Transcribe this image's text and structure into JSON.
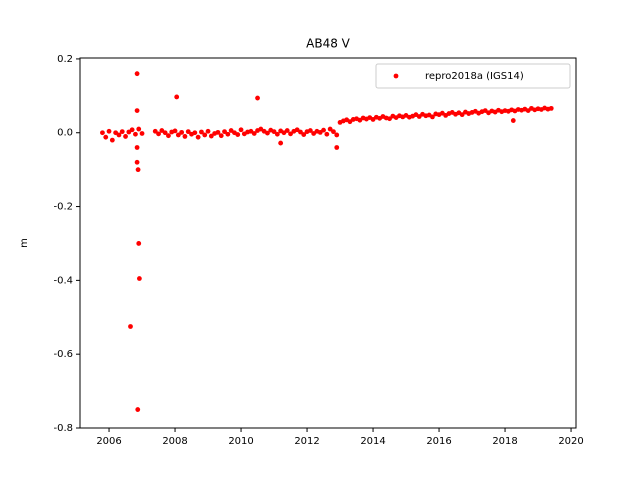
{
  "chart_data": {
    "type": "scatter",
    "title": "AB48 V",
    "y_label": "m",
    "xlim": [
      2005.12,
      2020.15
    ],
    "xticks": [
      2006,
      2008,
      2010,
      2012,
      2014,
      2016,
      2018,
      2020
    ],
    "ylim": [
      -0.8,
      0.2025
    ],
    "yticks": [
      -0.8,
      -0.6,
      -0.4,
      -0.2,
      {
        "value": 0,
        "label": "0.0"
      },
      0.2
    ],
    "legend": "upper right",
    "series": [
      {
        "name": "repro2018a (IGS14)",
        "color": "#ff0000",
        "x": [
          2005.8,
          2005.9,
          2006.0,
          2006.1,
          2006.2,
          2006.3,
          2006.4,
          2006.5,
          2006.6,
          2006.7,
          2006.8,
          2006.9,
          2007.0,
          2007.4,
          2007.5,
          2007.6,
          2007.7,
          2007.8,
          2007.9,
          2008.0,
          2008.1,
          2008.2,
          2008.3,
          2008.4,
          2008.5,
          2008.6,
          2008.7,
          2008.8,
          2008.9,
          2009.0,
          2009.1,
          2009.2,
          2009.3,
          2009.4,
          2009.5,
          2009.6,
          2009.7,
          2009.8,
          2009.9,
          2010.0,
          2010.1,
          2010.2,
          2010.3,
          2010.4,
          2010.5,
          2010.6,
          2010.7,
          2010.8,
          2010.9,
          2011.0,
          2011.1,
          2011.2,
          2011.3,
          2011.4,
          2011.5,
          2011.6,
          2011.7,
          2011.8,
          2011.9,
          2012.0,
          2012.1,
          2012.2,
          2012.3,
          2012.4,
          2012.5,
          2012.6,
          2012.7,
          2012.8,
          2012.9,
          2013.0,
          2013.1,
          2013.2,
          2013.3,
          2013.4,
          2013.5,
          2013.6,
          2013.7,
          2013.8,
          2013.9,
          2014.0,
          2014.1,
          2014.2,
          2014.3,
          2014.4,
          2014.5,
          2014.6,
          2014.7,
          2014.8,
          2014.9,
          2015.0,
          2015.1,
          2015.2,
          2015.3,
          2015.4,
          2015.5,
          2015.6,
          2015.7,
          2015.8,
          2015.9,
          2016.0,
          2016.1,
          2016.2,
          2016.3,
          2016.4,
          2016.5,
          2016.6,
          2016.7,
          2016.8,
          2016.9,
          2017.0,
          2017.1,
          2017.2,
          2017.3,
          2017.4,
          2017.5,
          2017.6,
          2017.7,
          2017.8,
          2017.9,
          2018.0,
          2018.1,
          2018.2,
          2018.3,
          2018.4,
          2018.5,
          2018.6,
          2018.7,
          2018.8,
          2018.9,
          2019.0,
          2019.1,
          2019.2,
          2019.3,
          2019.4,
          2006.85,
          2006.85,
          2006.85,
          2006.85,
          2006.88,
          2006.9,
          2006.92,
          2006.65,
          2006.87,
          2008.05,
          2010.5,
          2011.2,
          2012.9,
          2018.25
        ],
        "values": [
          0.0,
          -0.012,
          0.004,
          -0.02,
          0.0,
          -0.006,
          0.003,
          -0.01,
          0.002,
          0.008,
          -0.004,
          0.01,
          -0.002,
          0.004,
          -0.003,
          0.006,
          0.0,
          -0.008,
          0.002,
          0.005,
          -0.006,
          0.001,
          -0.01,
          0.003,
          -0.004,
          0.0,
          -0.012,
          0.002,
          -0.006,
          0.004,
          -0.009,
          -0.002,
          0.001,
          -0.008,
          0.003,
          -0.004,
          0.006,
          0.0,
          -0.005,
          0.008,
          -0.003,
          0.002,
          0.004,
          -0.002,
          0.006,
          0.01,
          0.004,
          -0.001,
          0.007,
          0.003,
          -0.004,
          0.005,
          0.0,
          0.006,
          -0.003,
          0.004,
          0.008,
          0.002,
          -0.005,
          0.003,
          0.006,
          -0.002,
          0.004,
          0.001,
          0.007,
          -0.004,
          0.01,
          0.003,
          -0.006,
          0.028,
          0.032,
          0.035,
          0.03,
          0.036,
          0.038,
          0.034,
          0.04,
          0.037,
          0.041,
          0.036,
          0.042,
          0.039,
          0.044,
          0.04,
          0.038,
          0.045,
          0.041,
          0.046,
          0.043,
          0.047,
          0.042,
          0.045,
          0.049,
          0.044,
          0.05,
          0.046,
          0.048,
          0.043,
          0.051,
          0.049,
          0.053,
          0.047,
          0.052,
          0.055,
          0.05,
          0.054,
          0.049,
          0.056,
          0.052,
          0.055,
          0.058,
          0.053,
          0.057,
          0.06,
          0.054,
          0.059,
          0.056,
          0.061,
          0.057,
          0.06,
          0.058,
          0.062,
          0.059,
          0.063,
          0.061,
          0.064,
          0.06,
          0.066,
          0.062,
          0.065,
          0.063,
          0.067,
          0.064,
          0.066,
          0.16,
          0.06,
          -0.04,
          -0.08,
          -0.1,
          -0.3,
          -0.395,
          -0.525,
          -0.75,
          0.097,
          0.094,
          -0.028,
          -0.04,
          0.033
        ]
      }
    ]
  }
}
